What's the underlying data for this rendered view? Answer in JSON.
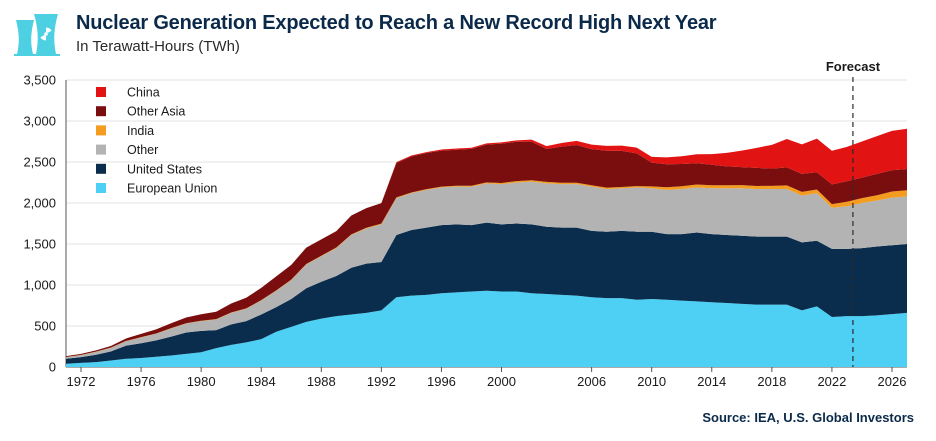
{
  "header": {
    "title": "Nuclear Generation Expected to Reach a New Record High Next Year",
    "subtitle": "In Terawatt-Hours (TWh)",
    "logo_icon": "nuclear-cooling-tower-icon",
    "logo_color": "#4dd0e1"
  },
  "footer": {
    "source": "Source: IEA, U.S. Global Investors"
  },
  "chart_data": {
    "type": "area",
    "stacked": true,
    "title": "Nuclear Generation Expected to Reach a New Record High Next Year",
    "subtitle": "In Terawatt-Hours (TWh)",
    "xlabel": "",
    "ylabel": "",
    "xlim": [
      1971,
      2027
    ],
    "ylim": [
      0,
      3500
    ],
    "yticks": [
      0,
      500,
      1000,
      1500,
      2000,
      2500,
      3000,
      3500
    ],
    "ytick_labels": [
      "0",
      "500",
      "1,000",
      "1,500",
      "2,000",
      "2,500",
      "3,000",
      "3,500"
    ],
    "xticks": [
      1972,
      1976,
      1980,
      1984,
      1988,
      1992,
      1996,
      2000,
      2006,
      2010,
      2014,
      2018,
      2022,
      2026
    ],
    "xtick_labels": [
      "1972",
      "1976",
      "1980",
      "1984",
      "1988",
      "1992",
      "1996",
      "2000",
      "2006",
      "2010",
      "2014",
      "2018",
      "2022",
      "2026"
    ],
    "grid": "horizontal",
    "legend_position": "top-left",
    "forecast": {
      "label": "Forecast",
      "x": 2023.4
    },
    "x": [
      1971,
      1972,
      1973,
      1974,
      1975,
      1976,
      1977,
      1978,
      1979,
      1980,
      1981,
      1982,
      1983,
      1984,
      1985,
      1986,
      1987,
      1988,
      1989,
      1990,
      1991,
      1992,
      1993,
      1994,
      1995,
      1996,
      1997,
      1998,
      1999,
      2000,
      2001,
      2002,
      2003,
      2004,
      2005,
      2006,
      2007,
      2008,
      2009,
      2010,
      2011,
      2012,
      2013,
      2014,
      2015,
      2016,
      2017,
      2018,
      2019,
      2020,
      2021,
      2022,
      2023,
      2024,
      2025,
      2026,
      2027
    ],
    "series": [
      {
        "name": "European Union",
        "color": "#4dd0f4",
        "values": [
          40,
          50,
          60,
          80,
          100,
          110,
          125,
          140,
          160,
          180,
          230,
          270,
          300,
          340,
          430,
          490,
          550,
          590,
          620,
          640,
          660,
          690,
          850,
          870,
          880,
          900,
          910,
          920,
          930,
          920,
          920,
          900,
          890,
          880,
          870,
          850,
          840,
          840,
          820,
          830,
          820,
          810,
          800,
          790,
          780,
          770,
          760,
          760,
          760,
          690,
          740,
          610,
          620,
          620,
          630,
          645,
          660
        ]
      },
      {
        "name": "United States",
        "color": "#0b2d4d",
        "values": [
          60,
          70,
          90,
          110,
          160,
          180,
          200,
          230,
          260,
          260,
          220,
          250,
          260,
          300,
          300,
          340,
          410,
          450,
          490,
          570,
          600,
          590,
          760,
          800,
          820,
          830,
          830,
          810,
          830,
          820,
          830,
          840,
          820,
          820,
          830,
          810,
          810,
          820,
          830,
          820,
          800,
          810,
          840,
          830,
          830,
          830,
          830,
          830,
          830,
          830,
          800,
          830,
          820,
          830,
          840,
          840,
          840
        ]
      },
      {
        "name": "Other",
        "color": "#b3b3b3",
        "values": [
          20,
          25,
          35,
          45,
          55,
          70,
          80,
          100,
          110,
          120,
          130,
          140,
          150,
          170,
          200,
          230,
          290,
          310,
          340,
          400,
          430,
          460,
          450,
          450,
          460,
          460,
          460,
          470,
          480,
          490,
          500,
          520,
          530,
          530,
          530,
          540,
          520,
          520,
          540,
          530,
          540,
          550,
          550,
          560,
          570,
          580,
          580,
          580,
          580,
          570,
          580,
          500,
          520,
          550,
          560,
          580,
          580
        ]
      },
      {
        "name": "India",
        "color": "#f39c1f",
        "values": [
          2,
          3,
          3,
          3,
          3,
          4,
          4,
          4,
          4,
          4,
          4,
          4,
          5,
          5,
          5,
          6,
          6,
          7,
          7,
          7,
          8,
          8,
          8,
          8,
          9,
          9,
          10,
          10,
          12,
          14,
          17,
          18,
          18,
          17,
          17,
          17,
          17,
          15,
          16,
          22,
          32,
          35,
          35,
          36,
          37,
          38,
          38,
          39,
          45,
          45,
          45,
          47,
          55,
          60,
          65,
          75,
          75
        ]
      },
      {
        "name": "Other Asia",
        "color": "#7a0e0e",
        "values": [
          10,
          12,
          15,
          20,
          30,
          40,
          50,
          60,
          70,
          80,
          90,
          110,
          130,
          150,
          170,
          180,
          200,
          200,
          200,
          230,
          240,
          250,
          420,
          440,
          440,
          440,
          440,
          450,
          460,
          480,
          480,
          470,
          400,
          440,
          460,
          440,
          450,
          440,
          400,
          290,
          280,
          270,
          260,
          250,
          230,
          220,
          220,
          210,
          220,
          220,
          210,
          240,
          250,
          250,
          260,
          260,
          260
        ]
      },
      {
        "name": "China",
        "color": "#e21313",
        "values": [
          0,
          0,
          0,
          0,
          0,
          0,
          0,
          0,
          0,
          0,
          0,
          0,
          0,
          0,
          0,
          0,
          0,
          0,
          0,
          0,
          0,
          0,
          10,
          12,
          12,
          14,
          14,
          14,
          15,
          16,
          17,
          25,
          35,
          45,
          50,
          55,
          60,
          65,
          70,
          70,
          85,
          95,
          110,
          130,
          165,
          200,
          245,
          290,
          345,
          360,
          410,
          410,
          420,
          440,
          460,
          480,
          490
        ]
      }
    ]
  }
}
